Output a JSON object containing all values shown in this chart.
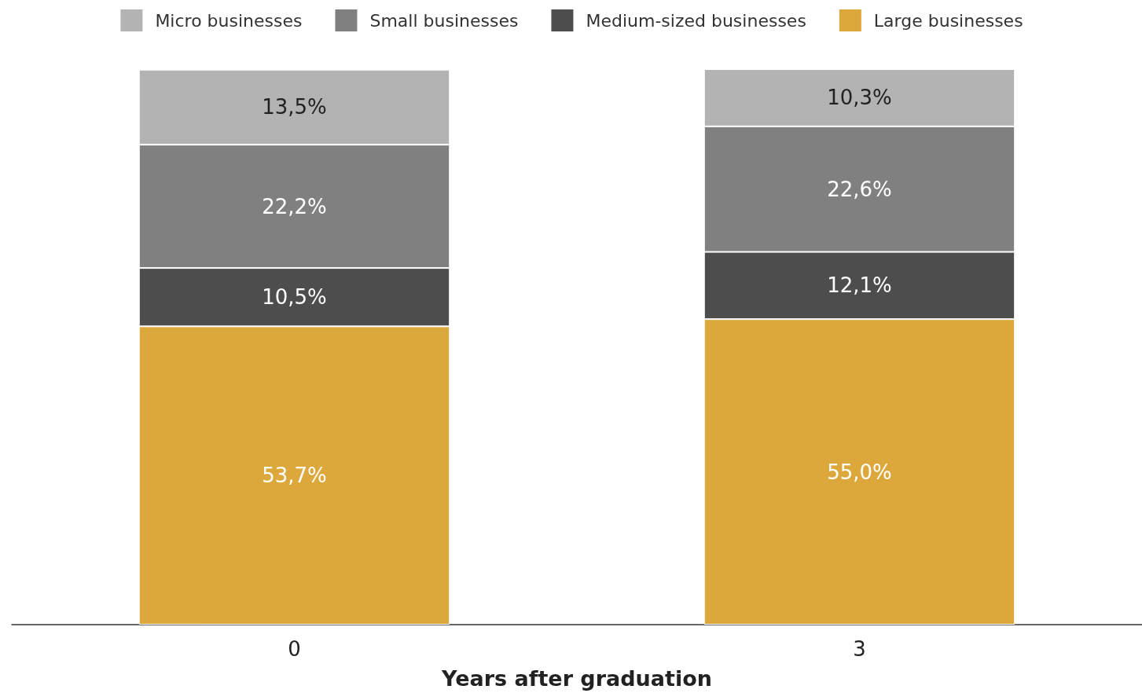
{
  "chart_data": {
    "type": "bar",
    "stacked": true,
    "xlabel": "Years after graduation",
    "categories": [
      "0",
      "3"
    ],
    "series": [
      {
        "name": "Large businesses",
        "color": "#dca83c",
        "values": [
          53.7,
          55.0
        ],
        "value_labels": [
          "53,7%",
          "55,0%"
        ]
      },
      {
        "name": "Medium-sized businesses",
        "color": "#4d4d4d",
        "values": [
          10.5,
          12.1
        ],
        "value_labels": [
          "10,5%",
          "12,1%"
        ]
      },
      {
        "name": "Small businesses",
        "color": "#808080",
        "values": [
          22.2,
          22.6
        ],
        "value_labels": [
          "22,2%",
          "22,6%"
        ]
      },
      {
        "name": "Micro businesses",
        "color": "#b3b3b3",
        "values": [
          13.5,
          10.3
        ],
        "value_labels": [
          "13,5%",
          "10,3%"
        ]
      }
    ],
    "legend": "top",
    "tick_labels": "x"
  }
}
